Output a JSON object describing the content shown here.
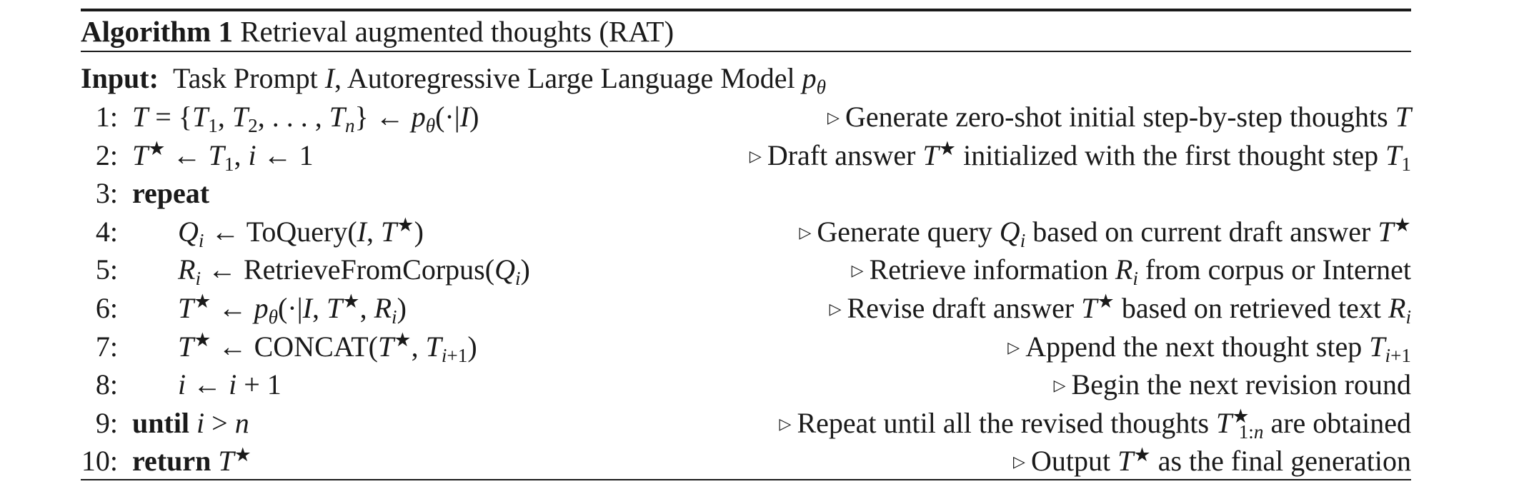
{
  "caption": {
    "label": "Algorithm 1",
    "title": "Retrieval augmented thoughts (RAT)"
  },
  "input": {
    "label": "Input:",
    "text": "Task Prompt I, Autoregressive Large Language Model pθ"
  },
  "lines": [
    {
      "num": "1:",
      "code": "T = {T1, T2, . . . , Tn} ← pθ(·|I)",
      "comment": "Generate zero-shot initial step-by-step thoughts T"
    },
    {
      "num": "2:",
      "code": "T★ ← T1, i ← 1",
      "comment": "Draft answer T★ initialized with the first thought step T1"
    },
    {
      "num": "3:",
      "code": "repeat",
      "comment": ""
    },
    {
      "num": "4:",
      "code": "Qi ← ToQuery(I, T★)",
      "comment": "Generate query Qi based on current draft answer T★"
    },
    {
      "num": "5:",
      "code": "Ri ← RetrieveFromCorpus(Qi)",
      "comment": "Retrieve information Ri from corpus or Internet"
    },
    {
      "num": "6:",
      "code": "T★ ← pθ(·|I, T★, Ri)",
      "comment": "Revise draft answer T★ based on retrieved text Ri"
    },
    {
      "num": "7:",
      "code": "T★ ← CONCAT(T★, Ti+1)",
      "comment": "Append the next thought step Ti+1"
    },
    {
      "num": "8:",
      "code": "i ← i + 1",
      "comment": "Begin the next revision round"
    },
    {
      "num": "9:",
      "code": "until i > n",
      "comment": "Repeat until all the revised thoughts T★1:n are obtained"
    },
    {
      "num": "10:",
      "code": "return T★",
      "comment": "Output T★ as the final generation"
    }
  ]
}
